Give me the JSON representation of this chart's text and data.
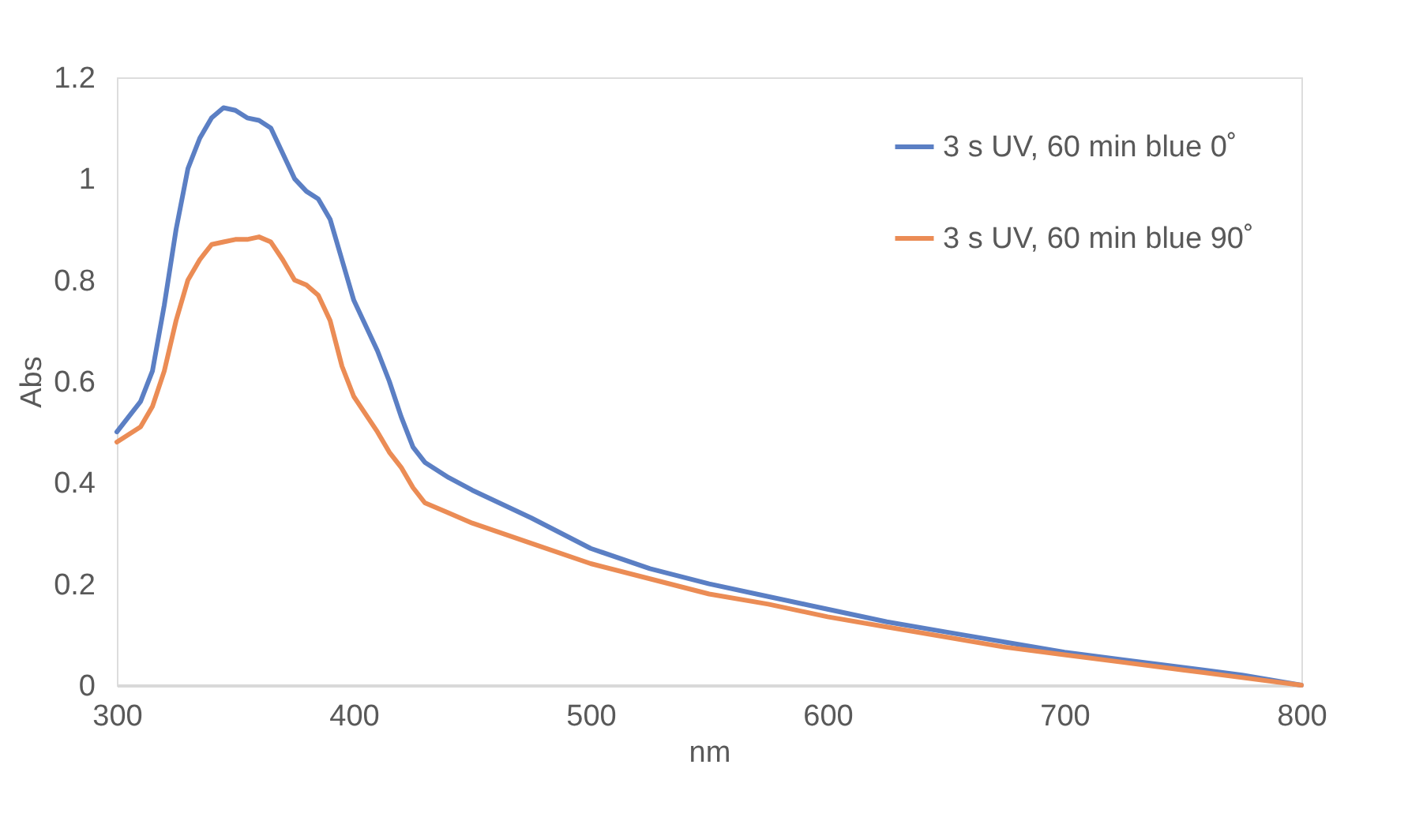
{
  "chart_data": {
    "type": "line",
    "xlabel": "nm",
    "ylabel": "Abs",
    "xlim": [
      300,
      800
    ],
    "xticks": [
      300,
      400,
      500,
      600,
      700,
      800
    ],
    "ylim": [
      0,
      1.2
    ],
    "yticks": [
      0,
      0.2,
      0.4,
      0.6,
      0.8,
      1,
      1.2
    ],
    "grid": false,
    "legend": "top right",
    "line_style": "solid",
    "marker": "none",
    "x": [
      300,
      310,
      315,
      320,
      325,
      330,
      335,
      340,
      345,
      350,
      355,
      360,
      365,
      370,
      375,
      380,
      385,
      390,
      395,
      400,
      410,
      415,
      420,
      425,
      430,
      440,
      450,
      475,
      500,
      525,
      550,
      575,
      600,
      625,
      650,
      675,
      700,
      725,
      750,
      775,
      800
    ],
    "series": [
      {
        "name": "3 s UV, 60 min blue 0˚",
        "color": "#5b7fc4",
        "values": [
          0.5,
          0.56,
          0.62,
          0.75,
          0.9,
          1.02,
          1.08,
          1.12,
          1.14,
          1.135,
          1.12,
          1.115,
          1.1,
          1.05,
          1.0,
          0.975,
          0.96,
          0.92,
          0.84,
          0.76,
          0.66,
          0.6,
          0.53,
          0.47,
          0.44,
          0.41,
          0.385,
          0.33,
          0.27,
          0.23,
          0.2,
          0.175,
          0.15,
          0.125,
          0.105,
          0.085,
          0.065,
          0.05,
          0.035,
          0.02,
          0.0
        ]
      },
      {
        "name": "3 s UV, 60 min blue 90˚",
        "color": "#eb8c55",
        "values": [
          0.48,
          0.51,
          0.55,
          0.62,
          0.72,
          0.8,
          0.84,
          0.87,
          0.875,
          0.88,
          0.88,
          0.885,
          0.875,
          0.84,
          0.8,
          0.79,
          0.77,
          0.72,
          0.63,
          0.57,
          0.5,
          0.46,
          0.43,
          0.39,
          0.36,
          0.34,
          0.32,
          0.28,
          0.24,
          0.21,
          0.18,
          0.16,
          0.135,
          0.115,
          0.095,
          0.075,
          0.06,
          0.045,
          0.03,
          0.015,
          0.0
        ]
      }
    ]
  }
}
